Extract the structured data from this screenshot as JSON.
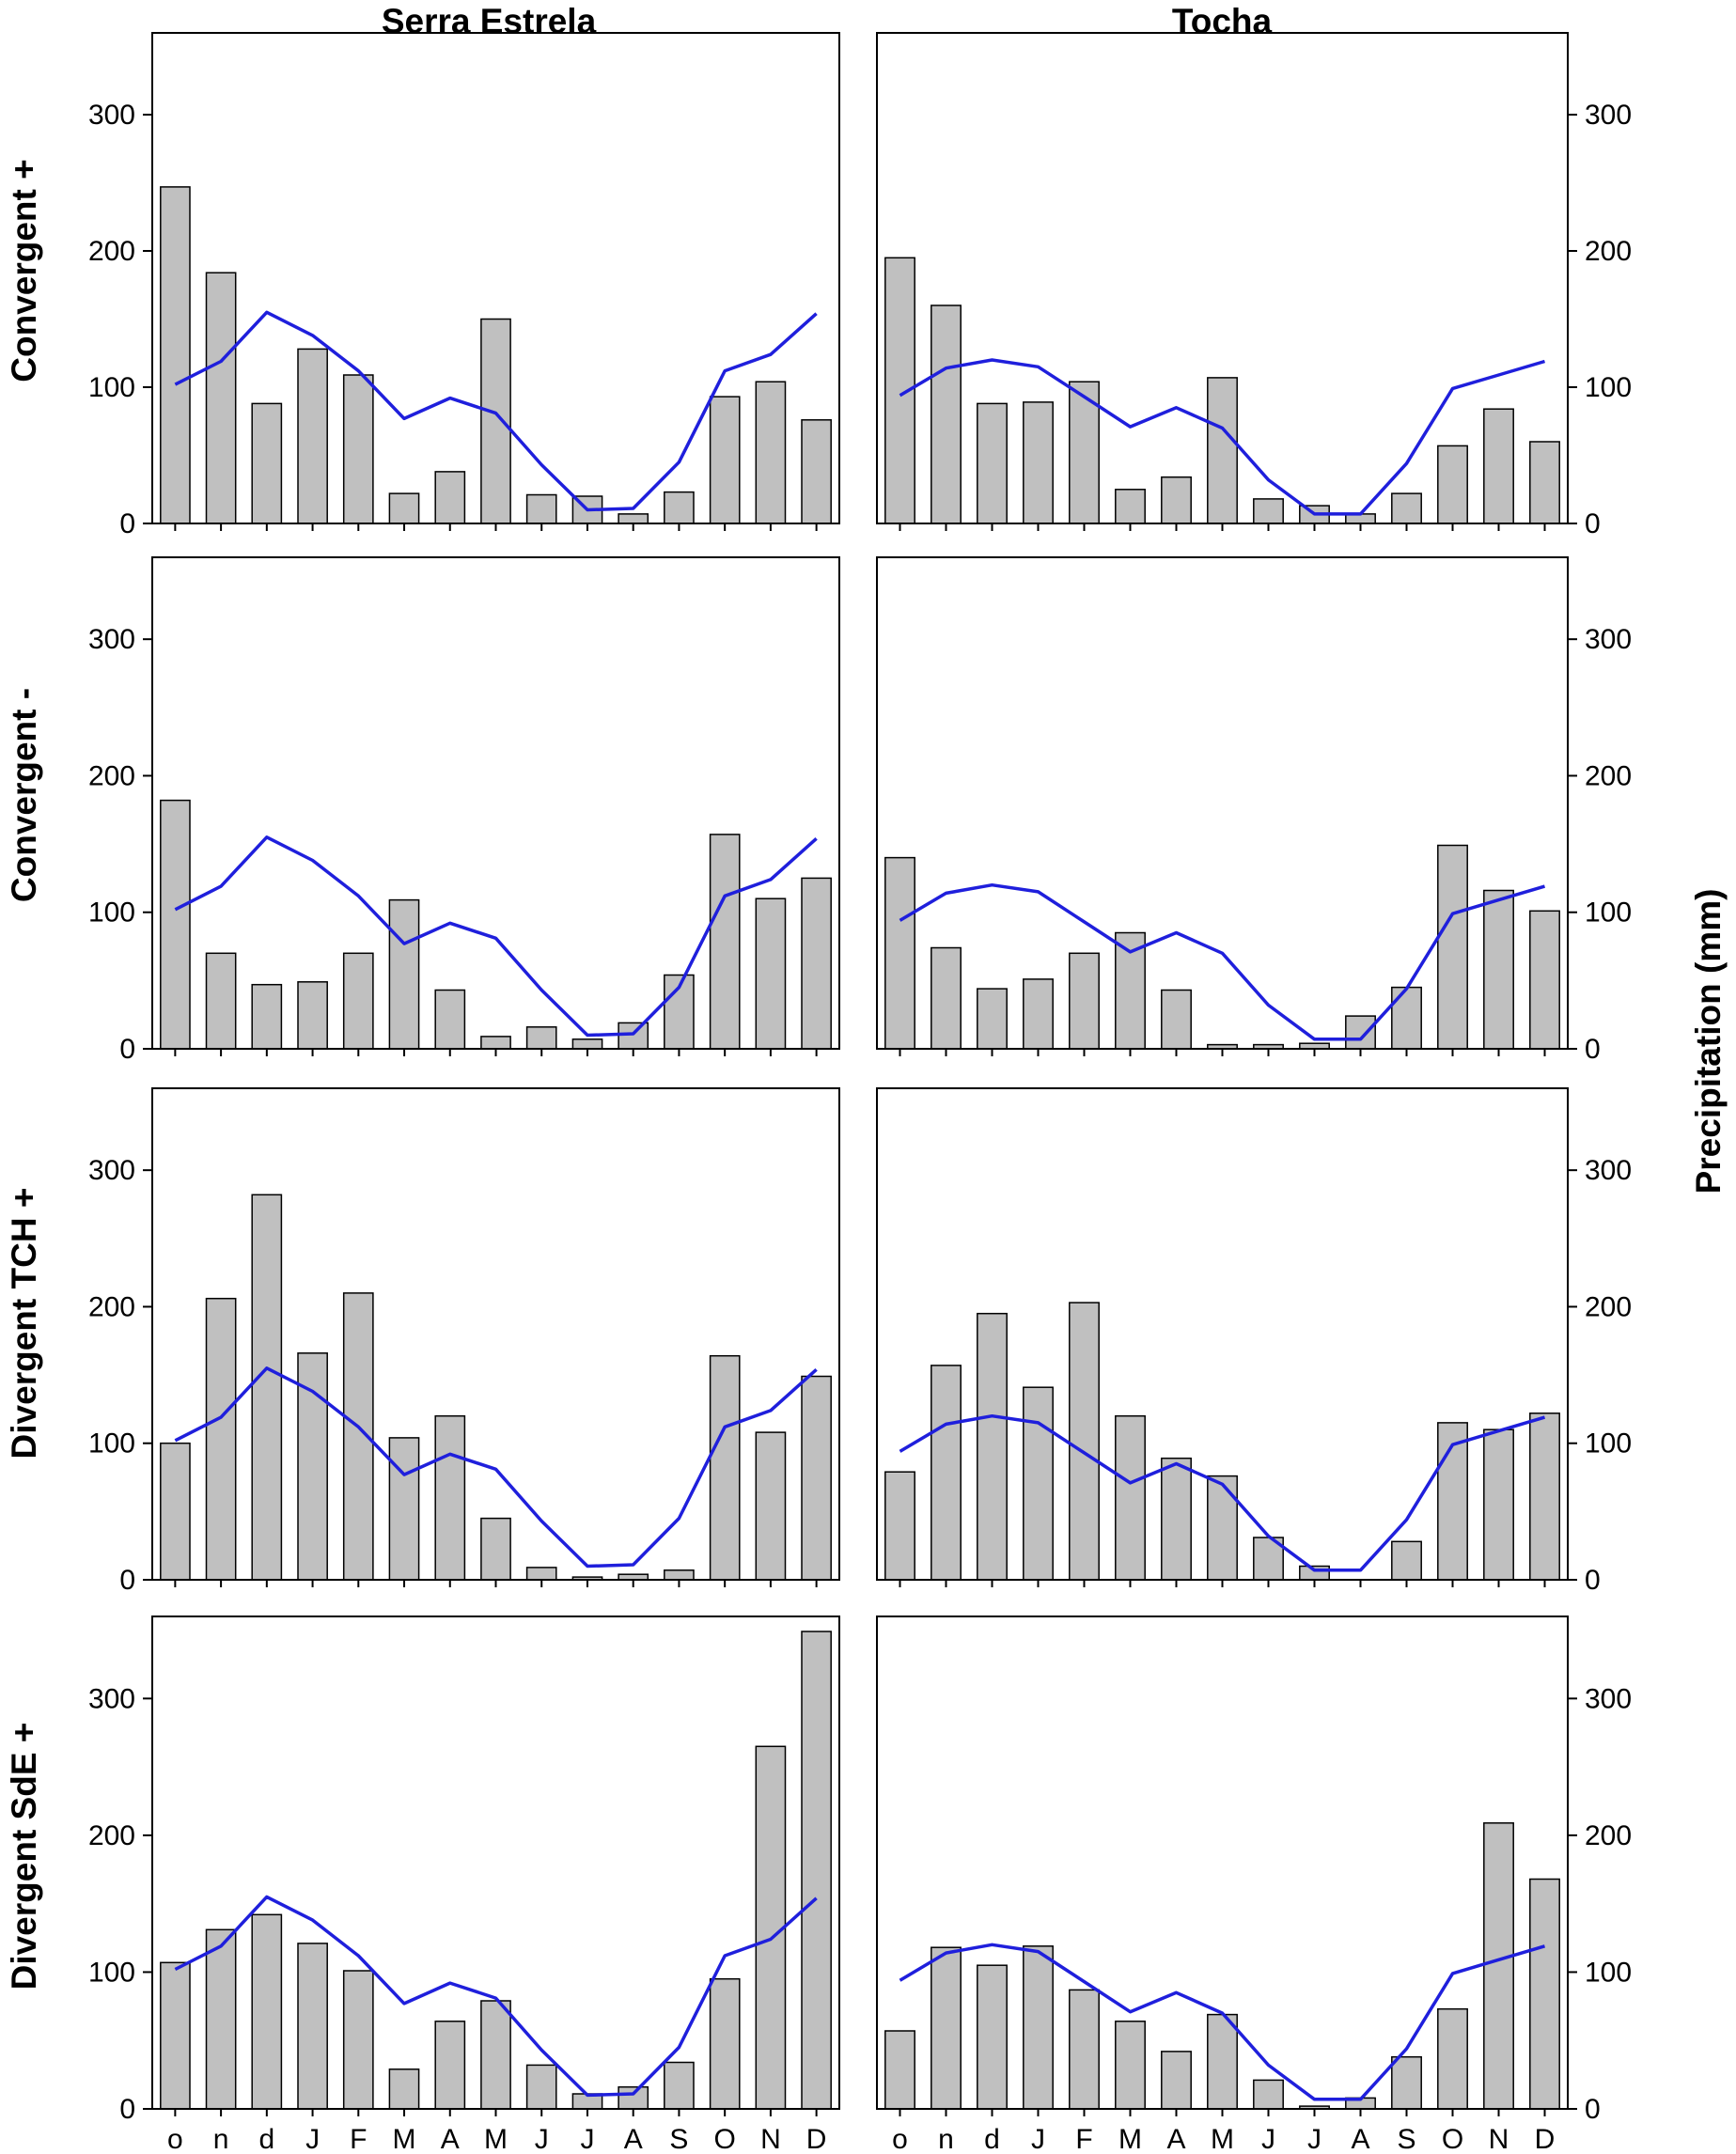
{
  "figure": {
    "column_titles": [
      "Serra Estrela",
      "Tocha"
    ],
    "y_axis_label": "Precipitation (mm)",
    "row_labels": [
      "Convergent +",
      "Convergent -",
      "Divergent TCH +",
      "Divergent SdE +"
    ],
    "bar_color": "#c0c0c0",
    "line_color": "#1f1fdc"
  },
  "chart_data": {
    "type": "bar",
    "layout": "4 rows x 2 columns of bar charts (bars = period monthly precipitation) with a climatological mean line",
    "months": [
      "o",
      "n",
      "d",
      "J",
      "F",
      "M",
      "A",
      "M",
      "J",
      "J",
      "A",
      "S",
      "O",
      "N",
      "D"
    ],
    "ylim": [
      0,
      360
    ],
    "yticks": [
      0,
      100,
      200,
      300
    ],
    "ylabel": "Precipitation (mm)",
    "climatology": {
      "Serra Estrela": [
        102,
        119,
        155,
        138,
        112,
        77,
        92,
        81,
        43,
        10,
        11,
        45,
        112,
        124,
        154
      ],
      "Tocha": [
        94,
        114,
        120,
        115,
        93,
        71,
        85,
        70,
        32,
        7,
        7,
        44,
        99,
        109,
        119
      ]
    },
    "panels": [
      {
        "row": "Convergent +",
        "site": "Serra Estrela",
        "values": [
          247,
          184,
          88,
          128,
          109,
          22,
          38,
          150,
          21,
          20,
          7,
          23,
          93,
          104,
          76
        ]
      },
      {
        "row": "Convergent +",
        "site": "Tocha",
        "values": [
          195,
          160,
          88,
          89,
          104,
          25,
          34,
          107,
          18,
          13,
          7,
          22,
          57,
          84,
          60
        ]
      },
      {
        "row": "Convergent -",
        "site": "Serra Estrela",
        "values": [
          182,
          70,
          47,
          49,
          70,
          109,
          43,
          9,
          16,
          7,
          19,
          54,
          157,
          110,
          125
        ]
      },
      {
        "row": "Convergent -",
        "site": "Tocha",
        "values": [
          140,
          74,
          44,
          51,
          70,
          85,
          43,
          3,
          3,
          4,
          24,
          45,
          149,
          116,
          101
        ]
      },
      {
        "row": "Divergent TCH +",
        "site": "Serra Estrela",
        "values": [
          100,
          206,
          282,
          166,
          210,
          104,
          120,
          45,
          9,
          2,
          4,
          7,
          164,
          108,
          149
        ]
      },
      {
        "row": "Divergent TCH +",
        "site": "Tocha",
        "values": [
          79,
          157,
          195,
          141,
          203,
          120,
          89,
          76,
          31,
          10,
          0,
          28,
          115,
          110,
          122
        ]
      },
      {
        "row": "Divergent SdE +",
        "site": "Serra Estrela",
        "values": [
          107,
          131,
          142,
          121,
          101,
          29,
          64,
          79,
          32,
          11,
          16,
          34,
          95,
          265,
          349
        ]
      },
      {
        "row": "Divergent SdE +",
        "site": "Tocha",
        "values": [
          57,
          118,
          105,
          119,
          87,
          64,
          42,
          69,
          21,
          2,
          8,
          38,
          73,
          209,
          168
        ]
      }
    ]
  }
}
